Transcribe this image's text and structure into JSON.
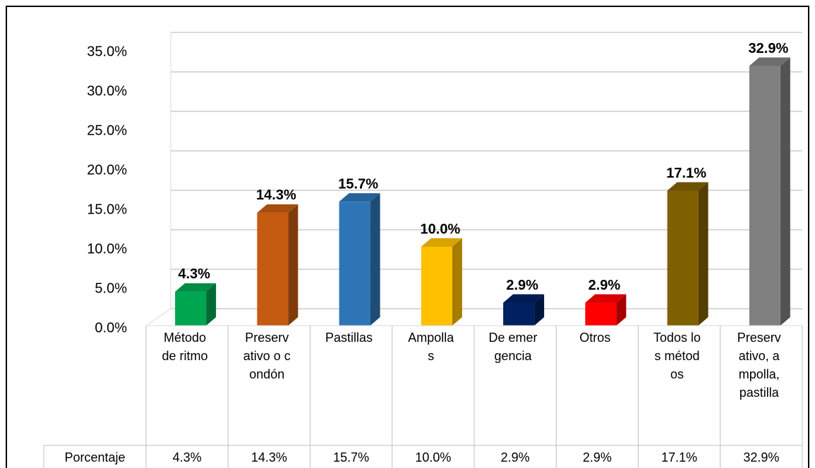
{
  "chart_data": {
    "type": "bar3d",
    "categories": [
      "Método de ritmo",
      "Preservativo o condón",
      "Pastillas",
      "Ampollas",
      "De emergencia",
      "Otros",
      "Todos los métodos",
      "Preservativo, ampolla, pastilla"
    ],
    "values": [
      4.3,
      14.3,
      15.7,
      10.0,
      2.9,
      2.9,
      17.1,
      32.9
    ],
    "value_labels": [
      "4.3%",
      "14.3%",
      "15.7%",
      "10.0%",
      "2.9%",
      "2.9%",
      "17.1%",
      "32.9%"
    ],
    "colors": [
      "#00a550",
      "#c55a11",
      "#2e75b6",
      "#ffc000",
      "#002060",
      "#ff0000",
      "#7f6000",
      "#808080"
    ],
    "table_row_label": "Porcentaje",
    "ylim": [
      0,
      35
    ],
    "yticks": [
      {
        "value": 0,
        "label": "0.0%"
      },
      {
        "value": 5,
        "label": "5.0%"
      },
      {
        "value": 10,
        "label": "10.0%"
      },
      {
        "value": 15,
        "label": "15.0%"
      },
      {
        "value": 20,
        "label": "20.0%"
      },
      {
        "value": 25,
        "label": "25.0%"
      },
      {
        "value": 30,
        "label": "30.0%"
      },
      {
        "value": 35,
        "label": "35.0%"
      }
    ],
    "grid": true
  }
}
